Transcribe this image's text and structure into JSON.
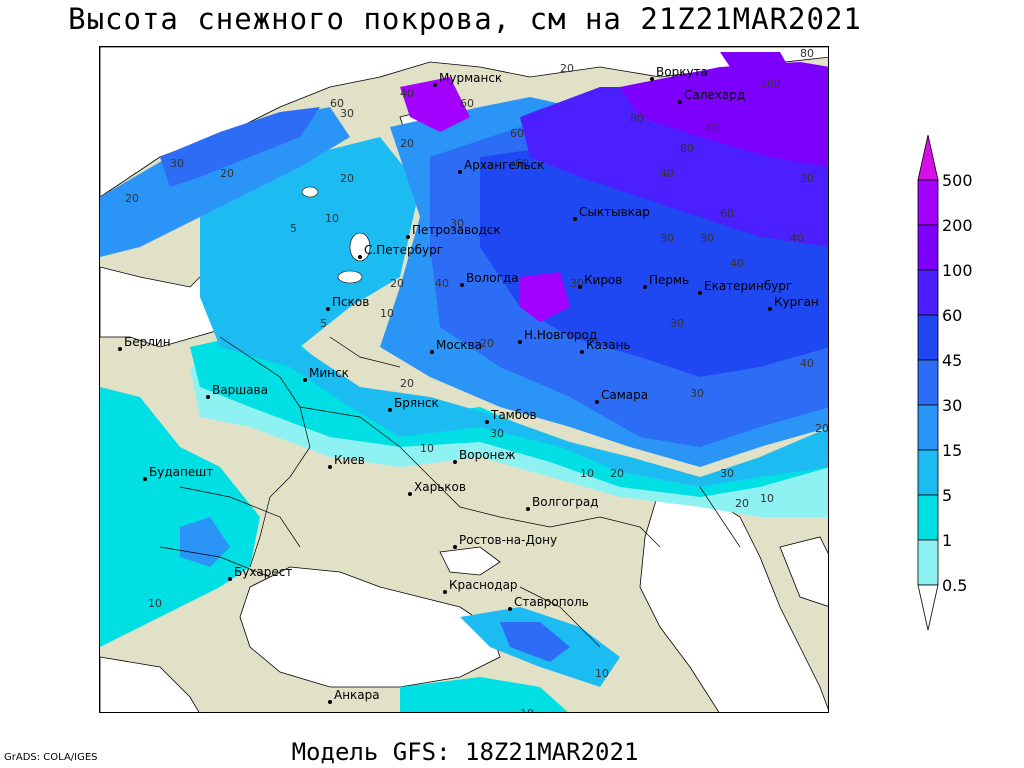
{
  "title": "Высота снежного покрова, см на 21Z21MAR2021",
  "footer_model": "Модель GFS: 18Z21MAR2021",
  "footer_credit": "GrADS: COLA/IGES",
  "colorbar": {
    "levels": [
      "500",
      "200",
      "100",
      "60",
      "45",
      "30",
      "15",
      "5",
      "1",
      "0.5"
    ],
    "colors": [
      "#d60fe6",
      "#a200ff",
      "#7d00ff",
      "#4b1fff",
      "#1f48f2",
      "#2d6cf5",
      "#2b95f7",
      "#1cbcf2",
      "#00e0e4",
      "#8ef2f2",
      "#ffffff"
    ]
  },
  "palette": {
    "land": "#e1e1c8",
    "water": "#ffffff"
  },
  "cities": [
    {
      "name": "Мурманск"
    },
    {
      "name": "Воркута"
    },
    {
      "name": "Салехард"
    },
    {
      "name": "Архангельск"
    },
    {
      "name": "Сыктывкар"
    },
    {
      "name": "Петрозаводск"
    },
    {
      "name": "С.Петербург"
    },
    {
      "name": "Вологда"
    },
    {
      "name": "Киров"
    },
    {
      "name": "Пермь"
    },
    {
      "name": "Екатеринбург"
    },
    {
      "name": "Курган"
    },
    {
      "name": "Псков"
    },
    {
      "name": "Н.Новгород"
    },
    {
      "name": "Казань"
    },
    {
      "name": "Москва"
    },
    {
      "name": "Берлин"
    },
    {
      "name": "Минск"
    },
    {
      "name": "Варшава"
    },
    {
      "name": "Брянск"
    },
    {
      "name": "Тамбов"
    },
    {
      "name": "Самара"
    },
    {
      "name": "Воронеж"
    },
    {
      "name": "Киев"
    },
    {
      "name": "Харьков"
    },
    {
      "name": "Будапешт"
    },
    {
      "name": "Волгоград"
    },
    {
      "name": "Ростов-на-Дону"
    },
    {
      "name": "Бухарест"
    },
    {
      "name": "Краснодар"
    },
    {
      "name": "Ставрополь"
    },
    {
      "name": "Анкара"
    }
  ],
  "contour_labels": [
    "20",
    "40",
    "60",
    "80",
    "100",
    "30",
    "10",
    "5",
    "50",
    "1"
  ]
}
